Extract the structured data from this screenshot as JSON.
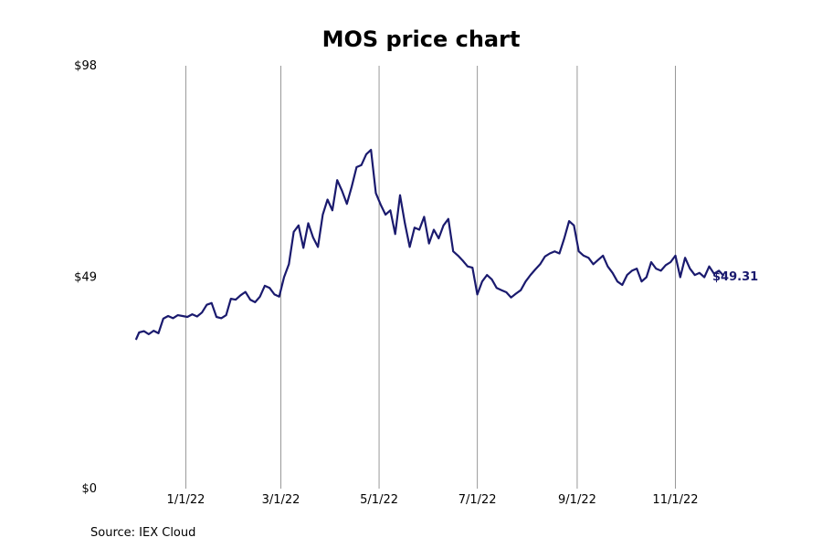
{
  "chart_data": {
    "type": "line",
    "title": "MOS price chart",
    "source": "Source: IEX Cloud",
    "line_color": "#1a1a6e",
    "grid_color": "#999999",
    "y_ticks": [
      {
        "value": 0,
        "label": "$0"
      },
      {
        "value": 49,
        "label": "$49"
      },
      {
        "value": 98,
        "label": "$98"
      }
    ],
    "ylim": [
      0,
      98
    ],
    "x_ticks": [
      {
        "value": "2022-01-01",
        "label": "1/1/22"
      },
      {
        "value": "2022-03-01",
        "label": "3/1/22"
      },
      {
        "value": "2022-05-01",
        "label": "5/1/22"
      },
      {
        "value": "2022-07-01",
        "label": "7/1/22"
      },
      {
        "value": "2022-09-01",
        "label": "9/1/22"
      },
      {
        "value": "2022-11-01",
        "label": "11/1/22"
      }
    ],
    "xlim": [
      "2021-11-26",
      "2022-12-28"
    ],
    "last_value_label": "$49.31",
    "series": [
      {
        "x": [
          "2021-12-01",
          "2021-12-03",
          "2021-12-06",
          "2021-12-09",
          "2021-12-12",
          "2021-12-15",
          "2021-12-18",
          "2021-12-21",
          "2021-12-24",
          "2021-12-27",
          "2021-12-30",
          "2022-01-02",
          "2022-01-05",
          "2022-01-08",
          "2022-01-11",
          "2022-01-14",
          "2022-01-17",
          "2022-01-20",
          "2022-01-23",
          "2022-01-26",
          "2022-01-29",
          "2022-02-01",
          "2022-02-04",
          "2022-02-07",
          "2022-02-10",
          "2022-02-13",
          "2022-02-16",
          "2022-02-19",
          "2022-02-22",
          "2022-02-25",
          "2022-02-28",
          "2022-03-03",
          "2022-03-06",
          "2022-03-09",
          "2022-03-12",
          "2022-03-15",
          "2022-03-18",
          "2022-03-21",
          "2022-03-24",
          "2022-03-27",
          "2022-03-30",
          "2022-04-02",
          "2022-04-05",
          "2022-04-08",
          "2022-04-11",
          "2022-04-14",
          "2022-04-17",
          "2022-04-20",
          "2022-04-23",
          "2022-04-26",
          "2022-04-29",
          "2022-05-02",
          "2022-05-05",
          "2022-05-08",
          "2022-05-11",
          "2022-05-14",
          "2022-05-17",
          "2022-05-20",
          "2022-05-23",
          "2022-05-26",
          "2022-05-29",
          "2022-06-01",
          "2022-06-04",
          "2022-06-07",
          "2022-06-10",
          "2022-06-13",
          "2022-06-16",
          "2022-06-19",
          "2022-06-22",
          "2022-06-25",
          "2022-06-28",
          "2022-07-01",
          "2022-07-04",
          "2022-07-07",
          "2022-07-10",
          "2022-07-13",
          "2022-07-16",
          "2022-07-19",
          "2022-07-22",
          "2022-07-25",
          "2022-07-28",
          "2022-07-31",
          "2022-08-03",
          "2022-08-06",
          "2022-08-09",
          "2022-08-12",
          "2022-08-15",
          "2022-08-18",
          "2022-08-21",
          "2022-08-24",
          "2022-08-27",
          "2022-08-30",
          "2022-09-02",
          "2022-09-05",
          "2022-09-08",
          "2022-09-11",
          "2022-09-14",
          "2022-09-17",
          "2022-09-20",
          "2022-09-23",
          "2022-09-26",
          "2022-09-29",
          "2022-10-02",
          "2022-10-05",
          "2022-10-08",
          "2022-10-11",
          "2022-10-14",
          "2022-10-17",
          "2022-10-20",
          "2022-10-23",
          "2022-10-26",
          "2022-10-29",
          "2022-11-01",
          "2022-11-04",
          "2022-11-07",
          "2022-11-10",
          "2022-11-13",
          "2022-11-16",
          "2022-11-19",
          "2022-11-22",
          "2022-11-25",
          "2022-11-28",
          "2022-12-01"
        ],
        "values": [
          34.5,
          36.2,
          36.5,
          35.8,
          36.6,
          36.0,
          39.4,
          40.0,
          39.5,
          40.2,
          40.0,
          39.8,
          40.4,
          39.9,
          40.8,
          42.6,
          43.0,
          39.8,
          39.5,
          40.2,
          44.0,
          43.8,
          44.8,
          45.6,
          43.8,
          43.2,
          44.5,
          47.0,
          46.5,
          45.0,
          44.5,
          49.0,
          52.0,
          59.5,
          61.0,
          55.8,
          61.5,
          58.2,
          56.0,
          63.5,
          67.0,
          64.5,
          71.5,
          69.0,
          66.0,
          70.0,
          74.5,
          75.0,
          77.5,
          78.5,
          68.5,
          65.8,
          63.5,
          64.5,
          59.0,
          68.0,
          61.5,
          56.0,
          60.5,
          60.0,
          63.0,
          56.8,
          60.0,
          58.0,
          61.0,
          62.5,
          55.0,
          54.0,
          52.8,
          51.5,
          51.2,
          45.0,
          48.0,
          49.5,
          48.5,
          46.5,
          46.0,
          45.5,
          44.3,
          45.2,
          46.0,
          48.0,
          49.5,
          50.8,
          52.0,
          53.8,
          54.5,
          55.0,
          54.5,
          58.0,
          62.0,
          61.0,
          55.0,
          54.0,
          53.5,
          52.0,
          53.0,
          54.0,
          51.5,
          50.0,
          48.0,
          47.2,
          49.5,
          50.5,
          51.0,
          48.0,
          49.0,
          52.5,
          51.0,
          50.5,
          51.8,
          52.5,
          54.0,
          49.0,
          53.5,
          51.0,
          49.5,
          50.0,
          49.0,
          51.5,
          49.8,
          50.5,
          49.31
        ]
      }
    ]
  }
}
